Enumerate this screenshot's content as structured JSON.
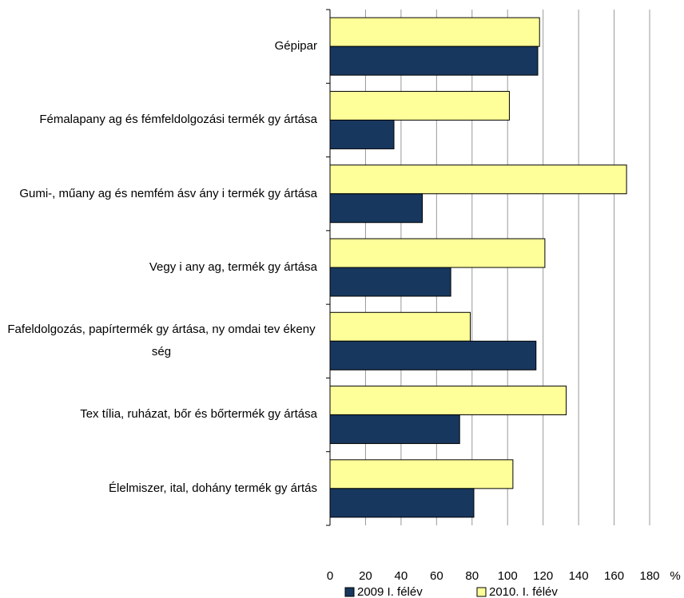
{
  "chart_data": {
    "type": "hbar",
    "categories": [
      "Gépipar",
      "Fémalapany ag és fémfeldolgozási termék gy ártása",
      "Gumi-, műany ag és nemfém ásv ány i  termék gy ártása",
      "Vegy i any ag, termék gy ártása",
      "Fafeldolgozás, papírtermék gy ártása, ny omdai tev ékeny ség",
      "Tex tília, ruházat, bőr és bőrtermék gy ártása",
      "Élelmiszer, ital, dohány termék gy ártás"
    ],
    "series": [
      {
        "name": "2009 I. félév",
        "color": "#17375e",
        "values": [
          117,
          36,
          52,
          68,
          116,
          73,
          81
        ]
      },
      {
        "name": "2010. I. félév",
        "color": "#ffff99",
        "values": [
          118,
          101,
          167,
          121,
          79,
          133,
          103
        ]
      }
    ],
    "xlim": [
      0,
      180
    ],
    "xticks": [
      0,
      20,
      40,
      60,
      80,
      100,
      120,
      140,
      160,
      180
    ],
    "x_unit": "%",
    "grid": true
  }
}
